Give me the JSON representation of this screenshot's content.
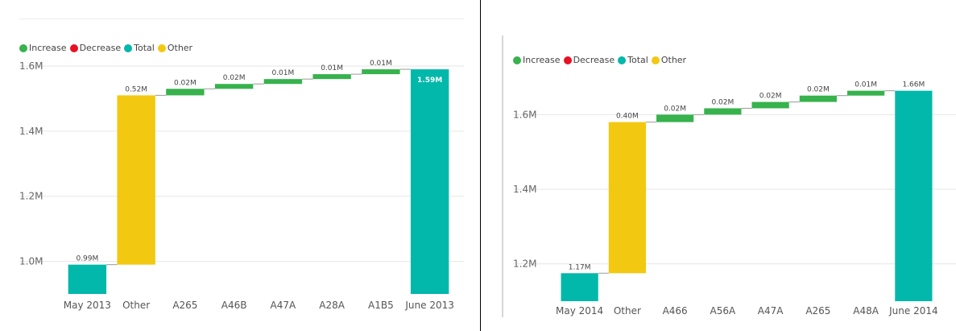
{
  "colors": {
    "increase": "#37b24d",
    "decrease": "#e81123",
    "total": "#01b8aa",
    "other": "#f2c811"
  },
  "legend": [
    {
      "label": "Increase",
      "key": "increase"
    },
    {
      "label": "Decrease",
      "key": "decrease"
    },
    {
      "label": "Total",
      "key": "total"
    },
    {
      "label": "Other",
      "key": "other"
    }
  ],
  "chart_data": [
    {
      "type": "waterfall",
      "title": "",
      "y_ticks": [
        1.0,
        1.2,
        1.4,
        1.6
      ],
      "y_tick_labels": [
        "1.0M",
        "1.2M",
        "1.4M",
        "1.6M"
      ],
      "ylim": [
        0.9,
        1.6
      ],
      "bars": [
        {
          "category": "May 2013",
          "kind": "total",
          "start": 0,
          "end": 0.99,
          "label": "0.99M"
        },
        {
          "category": "Other",
          "kind": "other",
          "start": 0.99,
          "end": 1.51,
          "label": "0.52M"
        },
        {
          "category": "A265",
          "kind": "increase",
          "start": 1.51,
          "end": 1.53,
          "label": "0.02M"
        },
        {
          "category": "A46B",
          "kind": "increase",
          "start": 1.53,
          "end": 1.545,
          "label": "0.02M"
        },
        {
          "category": "A47A",
          "kind": "increase",
          "start": 1.545,
          "end": 1.56,
          "label": "0.01M"
        },
        {
          "category": "A28A",
          "kind": "increase",
          "start": 1.56,
          "end": 1.575,
          "label": "0.01M"
        },
        {
          "category": "A1B5",
          "kind": "increase",
          "start": 1.575,
          "end": 1.59,
          "label": "0.01M"
        },
        {
          "category": "June 2013",
          "kind": "total",
          "start": 0,
          "end": 1.59,
          "label": "1.59M"
        }
      ]
    },
    {
      "type": "waterfall",
      "title": "",
      "y_ticks": [
        1.2,
        1.4,
        1.6
      ],
      "y_tick_labels": [
        "1.2M",
        "1.4M",
        "1.6M"
      ],
      "ylim": [
        1.1,
        1.7
      ],
      "bars": [
        {
          "category": "May 2014",
          "kind": "total",
          "start": 0,
          "end": 1.175,
          "label": "1.17M"
        },
        {
          "category": "Other",
          "kind": "other",
          "start": 1.175,
          "end": 1.58,
          "label": "0.40M"
        },
        {
          "category": "A466",
          "kind": "increase",
          "start": 1.58,
          "end": 1.6,
          "label": "0.02M"
        },
        {
          "category": "A56A",
          "kind": "increase",
          "start": 1.6,
          "end": 1.617,
          "label": "0.02M"
        },
        {
          "category": "A47A",
          "kind": "increase",
          "start": 1.617,
          "end": 1.634,
          "label": "0.02M"
        },
        {
          "category": "A265",
          "kind": "increase",
          "start": 1.634,
          "end": 1.651,
          "label": "0.02M"
        },
        {
          "category": "A48A",
          "kind": "increase",
          "start": 1.651,
          "end": 1.664,
          "label": "0.01M"
        },
        {
          "category": "June 2014",
          "kind": "total",
          "start": 0,
          "end": 1.664,
          "label": "1.66M"
        }
      ]
    }
  ]
}
